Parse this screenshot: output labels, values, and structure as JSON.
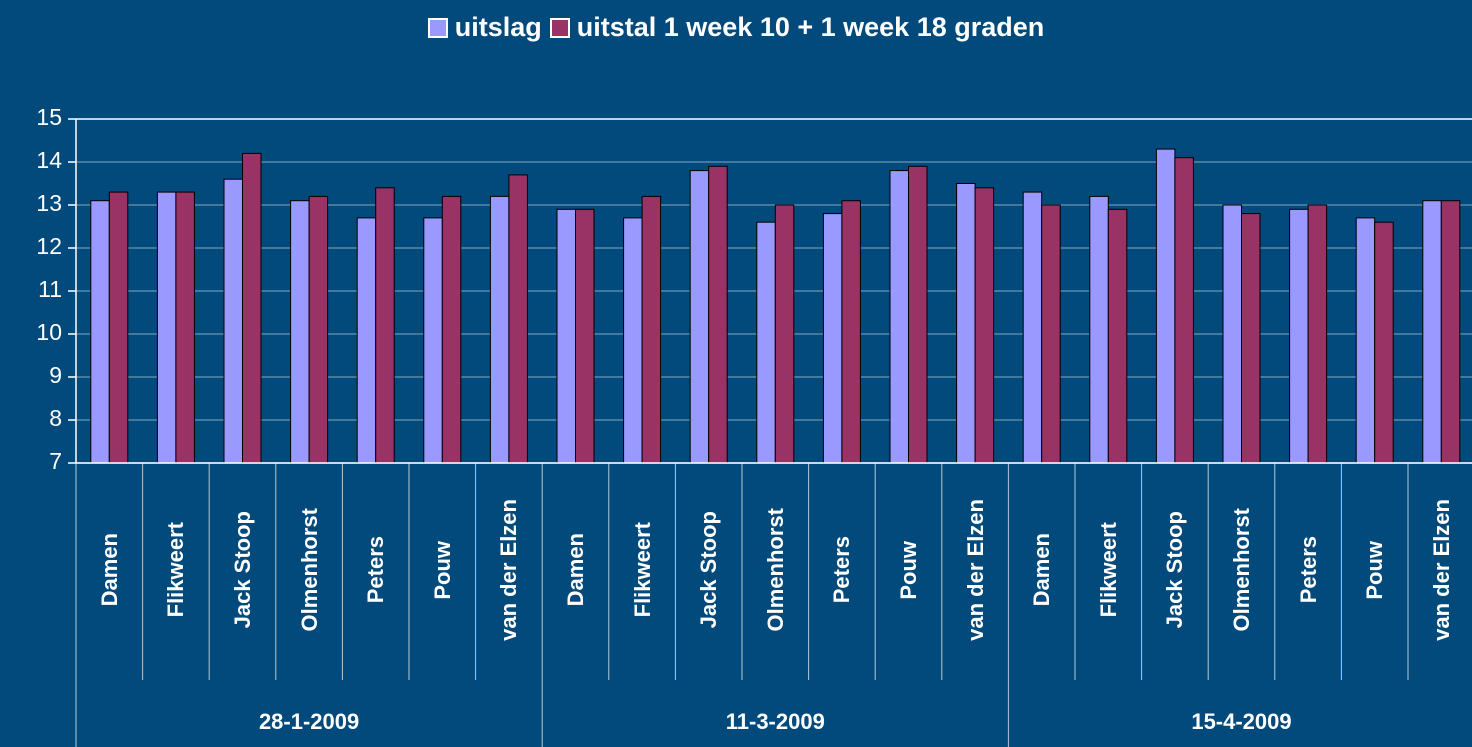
{
  "chart_data": {
    "type": "bar",
    "categories": [
      "Damen",
      "Flikweert",
      "Jack Stoop",
      "Olmenhorst",
      "Peters",
      "Pouw",
      "van der Elzen",
      "Damen",
      "Flikweert",
      "Jack Stoop",
      "Olmenhorst",
      "Peters",
      "Pouw",
      "van der Elzen",
      "Damen",
      "Flikweert",
      "Jack Stoop",
      "Olmenhorst",
      "Peters",
      "Pouw",
      "van der Elzen"
    ],
    "category_groups": [
      "28-1-2009",
      "11-3-2009",
      "15-4-2009"
    ],
    "series": [
      {
        "name": "uitslag",
        "color": "#9999ff",
        "values": [
          13.1,
          13.3,
          13.6,
          13.1,
          12.7,
          12.7,
          13.2,
          12.9,
          12.7,
          13.8,
          12.6,
          12.8,
          13.8,
          13.5,
          13.3,
          13.2,
          14.3,
          13.0,
          12.9,
          12.7,
          13.1
        ]
      },
      {
        "name": "uitstal 1 week 10 + 1 week 18 graden",
        "color": "#993366",
        "values": [
          13.3,
          13.3,
          14.2,
          13.2,
          13.4,
          13.2,
          13.7,
          12.9,
          13.2,
          13.9,
          13.0,
          13.1,
          13.9,
          13.4,
          13.0,
          12.9,
          14.1,
          12.8,
          13.0,
          12.6,
          13.1
        ]
      }
    ],
    "ylim": [
      7,
      15
    ],
    "yticks": [
      7,
      8,
      9,
      10,
      11,
      12,
      13,
      14,
      15
    ],
    "grid": true,
    "legend": "top"
  }
}
